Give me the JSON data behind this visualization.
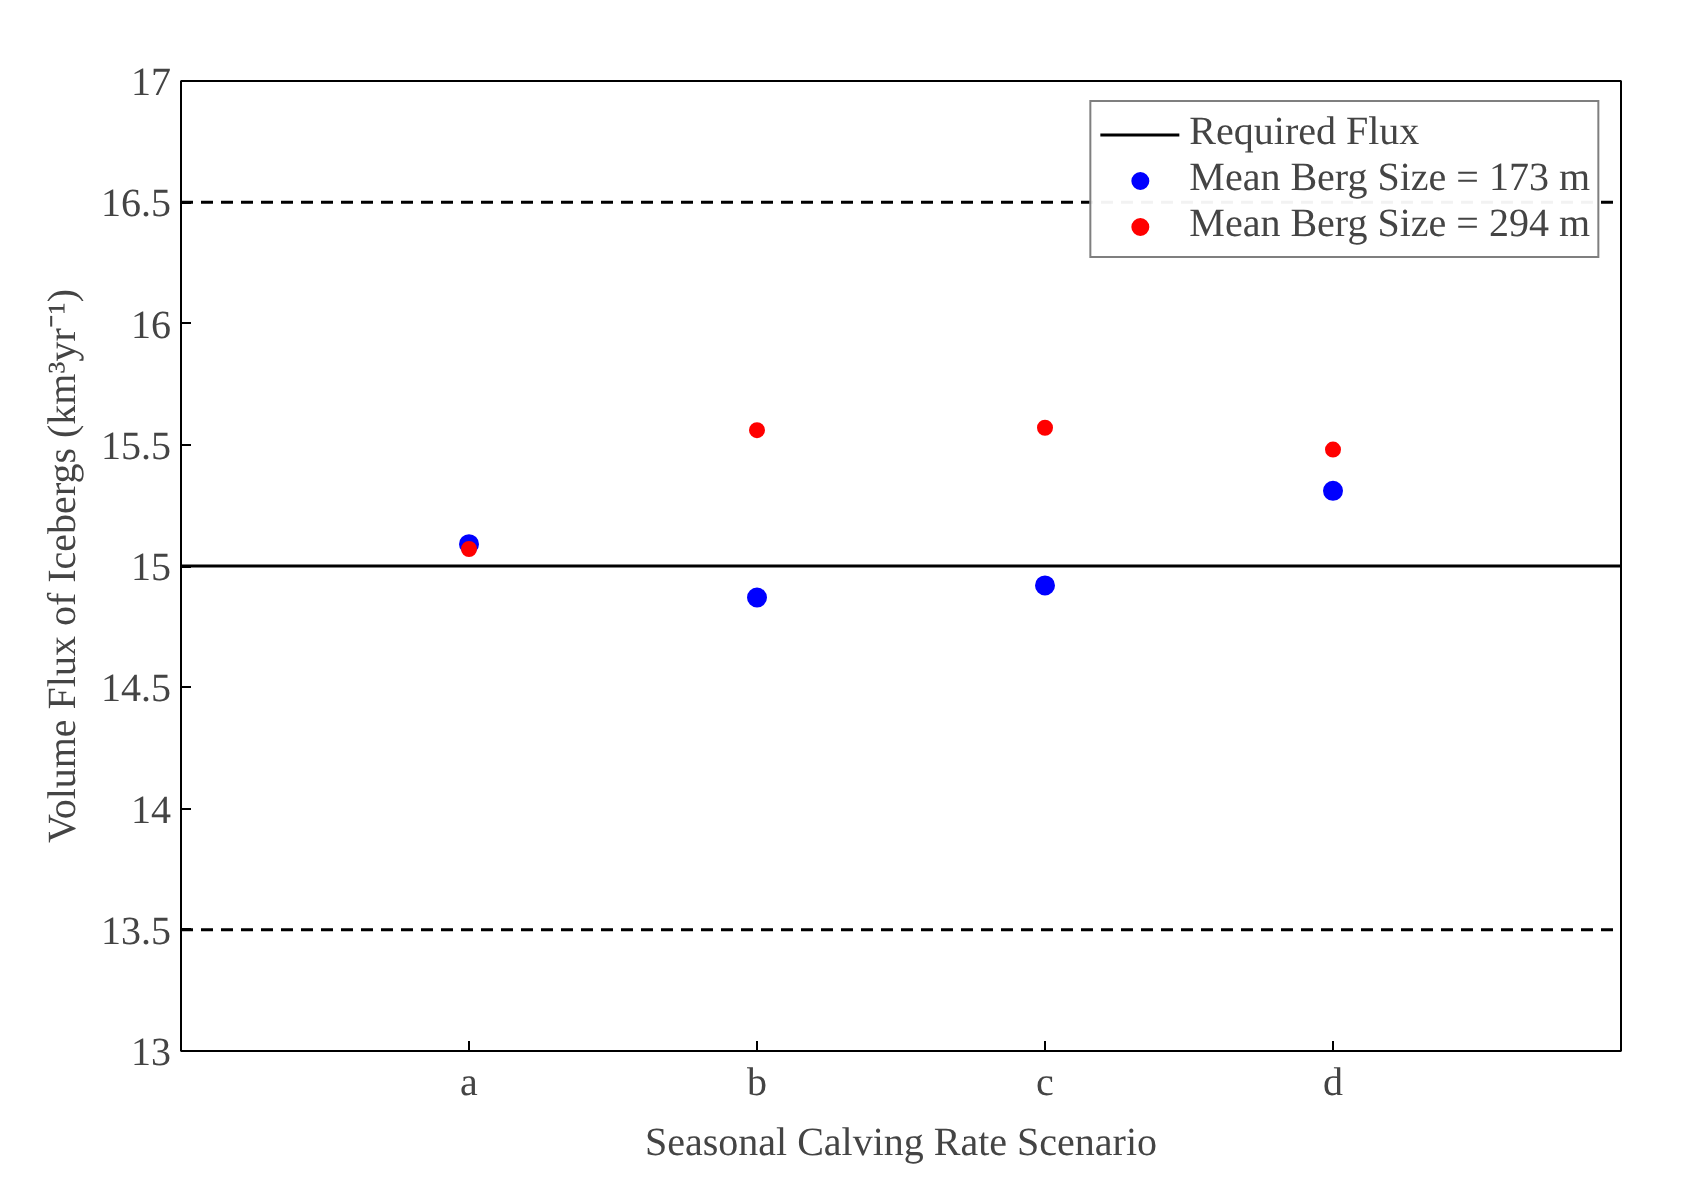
{
  "chart_data": {
    "type": "scatter",
    "xlabel": "Seasonal Calving Rate Scenario",
    "ylabel": "Volume Flux of Icebergs (km³yr⁻¹)",
    "categories": [
      "a",
      "b",
      "c",
      "d"
    ],
    "series": [
      {
        "name": "Mean Berg Size = 173 m",
        "color": "#0000ff",
        "values": [
          15.09,
          14.87,
          14.92,
          15.31
        ]
      },
      {
        "name": "Mean Berg Size = 294 m",
        "color": "#ff0000",
        "values": [
          15.07,
          15.56,
          15.57,
          15.48
        ]
      }
    ],
    "ylim": [
      13,
      17
    ],
    "yticks": [
      13,
      13.5,
      14,
      14.5,
      15,
      15.5,
      16,
      16.5,
      17
    ],
    "ref_lines": [
      {
        "axis": "y",
        "value": 15,
        "label": "Required Flux",
        "color": "#000000",
        "line_style": "solid"
      },
      {
        "axis": "y",
        "value": 16.5,
        "color": "#000000",
        "line_style": "dashed"
      },
      {
        "axis": "y",
        "value": 13.5,
        "color": "#000000",
        "line_style": "dashed"
      }
    ],
    "marker": "circle",
    "grid": false,
    "legend": "top right"
  }
}
